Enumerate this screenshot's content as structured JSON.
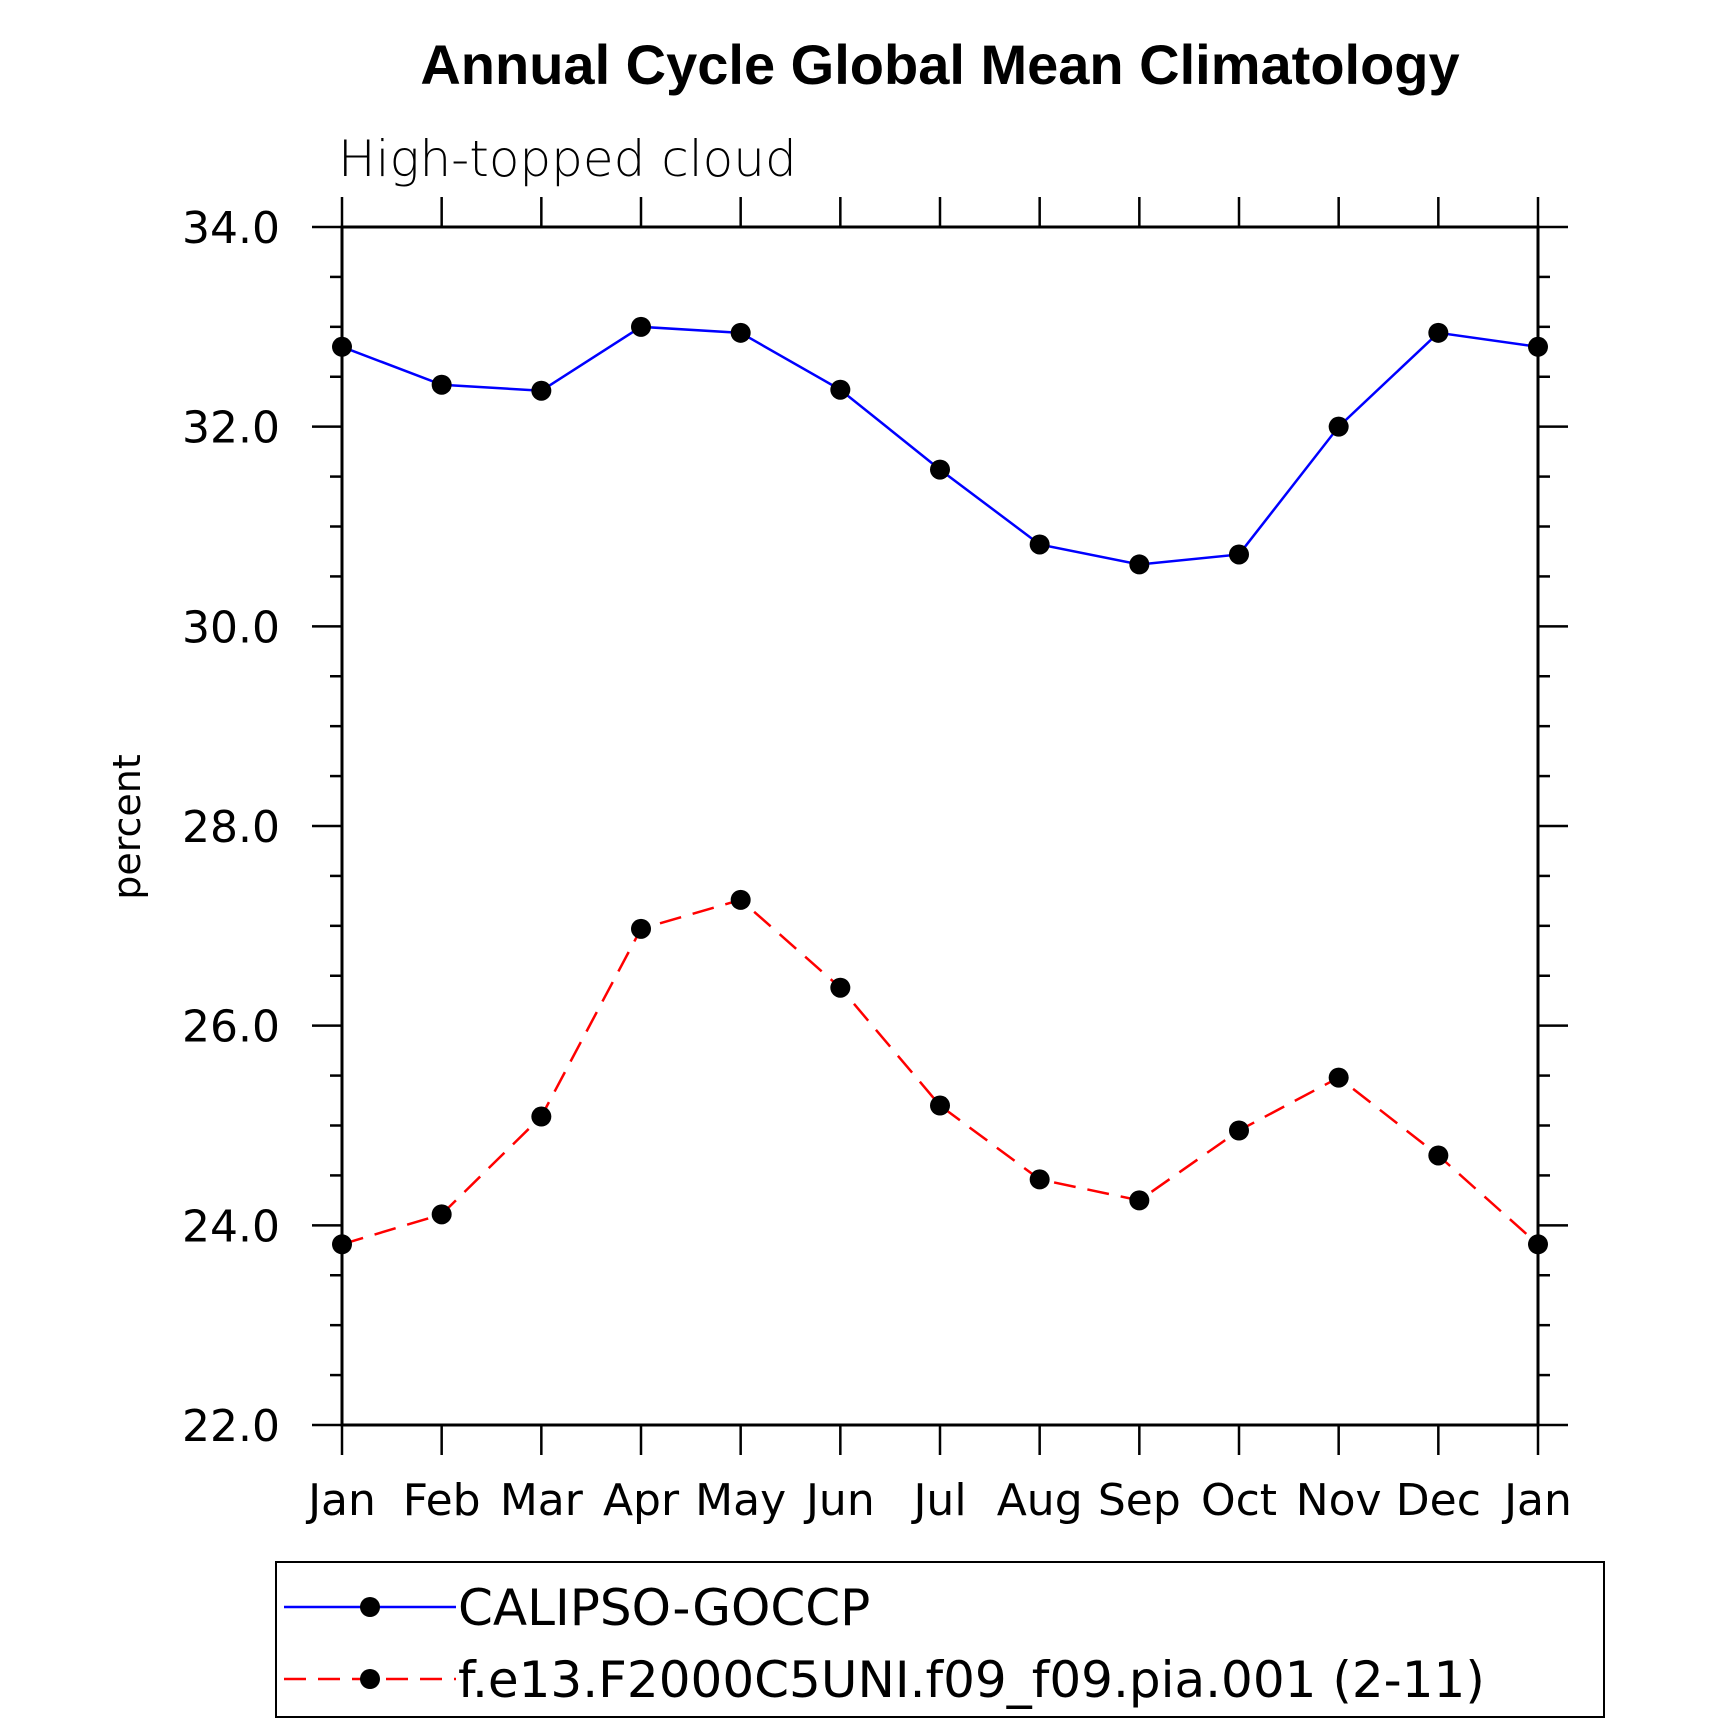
{
  "chart_data": {
    "type": "line",
    "title": "Annual Cycle Global Mean Climatology",
    "subtitle": "High-topped cloud",
    "xlabel": "",
    "ylabel": "percent",
    "categories": [
      "Jan",
      "Feb",
      "Mar",
      "Apr",
      "May",
      "Jun",
      "Jul",
      "Aug",
      "Sep",
      "Oct",
      "Nov",
      "Dec",
      "Jan"
    ],
    "ylim": [
      22.0,
      34.0
    ],
    "yticks": [
      22.0,
      24.0,
      26.0,
      28.0,
      30.0,
      32.0,
      34.0
    ],
    "ytick_labels": [
      "22.0",
      "24.0",
      "26.0",
      "28.0",
      "30.0",
      "32.0",
      "34.0"
    ],
    "y_minor_step": 0.5,
    "grid": false,
    "legend_position": "bottom",
    "series": [
      {
        "name": "CALIPSO-GOCCP",
        "color": "#0000ff",
        "line_style": "solid",
        "marker": "filled-circle",
        "values": [
          32.8,
          32.42,
          32.36,
          33.0,
          32.94,
          32.37,
          31.57,
          30.82,
          30.62,
          30.72,
          32.0,
          32.94,
          32.8
        ]
      },
      {
        "name": "f.e13.F2000C5UNI.f09_f09.pia.001 (2-11)",
        "color": "#ff0000",
        "line_style": "dashed",
        "marker": "filled-circle",
        "values": [
          23.81,
          24.11,
          25.09,
          26.97,
          27.26,
          26.38,
          25.2,
          24.46,
          24.25,
          24.95,
          25.48,
          24.7,
          23.81
        ]
      }
    ]
  }
}
